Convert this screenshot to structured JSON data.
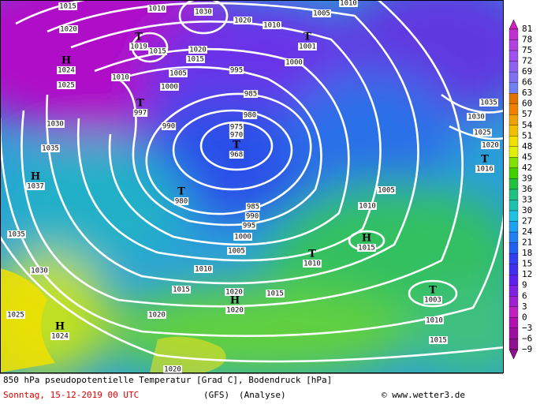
{
  "map": {
    "colorbar": [
      "81",
      "78",
      "75",
      "72",
      "69",
      "66",
      "63",
      "60",
      "57",
      "54",
      "51",
      "48",
      "45",
      "42",
      "39",
      "36",
      "33",
      "30",
      "27",
      "24",
      "21",
      "18",
      "15",
      "12",
      "9",
      "6",
      "3",
      "0",
      "−3",
      "−6",
      "−9"
    ],
    "isobar_labels": [
      1015,
      1010,
      1030,
      1020,
      1010,
      1005,
      1010,
      1020,
      1020,
      1015,
      1015,
      1005,
      1000,
      1010,
      995,
      1000,
      985,
      980,
      975,
      970,
      990,
      1025,
      1030,
      1035,
      1035,
      1030,
      1025,
      1020,
      1005,
      1010,
      985,
      990,
      995,
      1000,
      1005,
      1010,
      1015,
      1015,
      1020,
      1020,
      1035,
      1030,
      1025,
      1010,
      1015,
      1020
    ],
    "centers": [
      {
        "symbol": "H",
        "pressure": 1024
      },
      {
        "symbol": "T",
        "pressure": 1019
      },
      {
        "symbol": "T",
        "pressure": 1001
      },
      {
        "symbol": "T",
        "pressure": 997
      },
      {
        "symbol": "T",
        "pressure": 968
      },
      {
        "symbol": "T",
        "pressure": 980
      },
      {
        "symbol": "H",
        "pressure": 1037
      },
      {
        "symbol": "H",
        "pressure": 1015
      },
      {
        "symbol": "T",
        "pressure": 1010
      },
      {
        "symbol": "H",
        "pressure": 1020
      },
      {
        "symbol": "T",
        "pressure": 1016
      },
      {
        "symbol": "T",
        "pressure": 1003
      },
      {
        "symbol": "H",
        "pressure": 1024
      }
    ],
    "footer": {
      "title": "850 hPa pseudopotentielle Temperatur [Grad C], Bodendruck [hPa]",
      "date": "Sonntag, 15-12-2019  00 UTC",
      "model": "(GFS)",
      "run": "(Analyse)",
      "credit": "© www.wetter3.de"
    }
  }
}
